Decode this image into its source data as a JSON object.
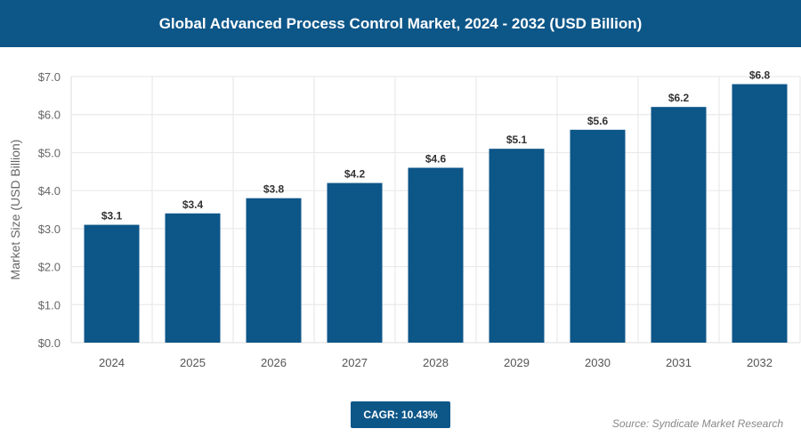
{
  "title": "Global Advanced Process Control Market, 2024 - 2032 (USD Billion)",
  "cagr_label": "CAGR: 10.43%",
  "source": "Source: Syndicate Market Research",
  "colors": {
    "bar": "#0d5688",
    "header": "#0d5688"
  },
  "chart_data": {
    "type": "bar",
    "title": "Global Advanced Process Control Market, 2024 - 2032 (USD Billion)",
    "xlabel": "",
    "ylabel": "Market Size (USD Billion)",
    "categories": [
      "2024",
      "2025",
      "2026",
      "2027",
      "2028",
      "2029",
      "2030",
      "2031",
      "2032"
    ],
    "values": [
      3.1,
      3.4,
      3.8,
      4.2,
      4.6,
      5.1,
      5.6,
      6.2,
      6.8
    ],
    "data_labels": [
      "$3.1",
      "$3.4",
      "$3.8",
      "$4.2",
      "$4.6",
      "$5.1",
      "$5.6",
      "$6.2",
      "$6.8"
    ],
    "ylim": [
      0,
      7
    ],
    "yticks": [
      "$0.0",
      "$1.0",
      "$2.0",
      "$3.0",
      "$4.0",
      "$5.0",
      "$6.0",
      "$7.0"
    ],
    "grid": true,
    "legend": "none"
  }
}
